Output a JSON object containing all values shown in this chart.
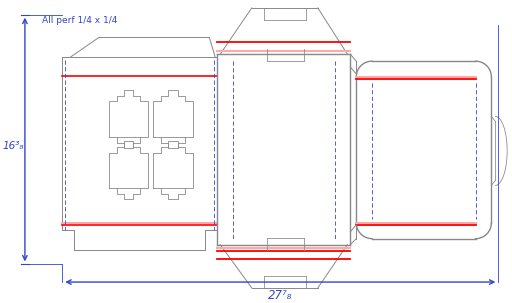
{
  "bg_color": "#ffffff",
  "line_color": "#888888",
  "red_color": "#ff0000",
  "blue_color": "#3344cc",
  "pink_color": "#ffaaaa",
  "dim_color": "#3344cc",
  "annotation": "All perf 1/4 x 1/4",
  "dim_width": "27⁷₈",
  "dim_height": "16³₈",
  "figsize": [
    5.12,
    3.03
  ],
  "dpi": 100
}
